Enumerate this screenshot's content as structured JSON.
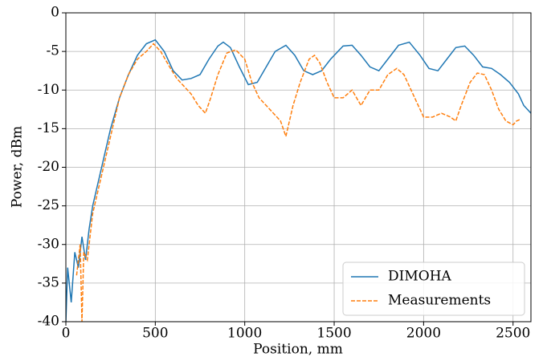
{
  "chart_data": {
    "type": "line",
    "xlabel": "Position, mm",
    "ylabel": "Power, dBm",
    "xlim": [
      0,
      2600
    ],
    "xticks": [
      0,
      500,
      1000,
      1500,
      2000,
      2500
    ],
    "ylim": [
      -40,
      0
    ],
    "yticks": [
      -40,
      -35,
      -30,
      -25,
      -20,
      -15,
      -10,
      -5,
      0
    ],
    "grid": true,
    "legend": "lower right",
    "series": [
      {
        "name": "DIMOHA",
        "color": "#1f77b4",
        "dash": "solid",
        "x": [
          0,
          10,
          30,
          50,
          70,
          90,
          110,
          130,
          150,
          200,
          250,
          300,
          350,
          400,
          450,
          500,
          550,
          600,
          650,
          700,
          750,
          800,
          850,
          880,
          920,
          970,
          1020,
          1070,
          1120,
          1170,
          1230,
          1280,
          1330,
          1380,
          1430,
          1480,
          1550,
          1600,
          1650,
          1700,
          1750,
          1800,
          1860,
          1920,
          1980,
          2030,
          2080,
          2130,
          2180,
          2230,
          2280,
          2330,
          2380,
          2430,
          2480,
          2530,
          2560,
          2600
        ],
        "values": [
          -40,
          -33,
          -37.5,
          -31,
          -33,
          -29,
          -32,
          -28,
          -25,
          -20,
          -15,
          -11,
          -8,
          -5.5,
          -4,
          -3.5,
          -5,
          -7.5,
          -8.7,
          -8.5,
          -8,
          -6,
          -4.3,
          -3.8,
          -4.5,
          -7,
          -9.3,
          -9,
          -7,
          -5,
          -4.2,
          -5.5,
          -7.5,
          -8,
          -7.5,
          -6,
          -4.3,
          -4.2,
          -5.5,
          -7,
          -7.5,
          -6,
          -4.2,
          -3.8,
          -5.5,
          -7.2,
          -7.5,
          -6,
          -4.5,
          -4.3,
          -5.5,
          -7,
          -7.2,
          -8,
          -9,
          -10.5,
          -12,
          -13
        ]
      },
      {
        "name": "Measurements",
        "color": "#ff7f0e",
        "dash": "dashed",
        "x": [
          60,
          80,
          90,
          100,
          120,
          150,
          200,
          250,
          300,
          350,
          400,
          450,
          490,
          530,
          580,
          620,
          660,
          700,
          740,
          780,
          810,
          850,
          900,
          950,
          1000,
          1040,
          1080,
          1120,
          1160,
          1200,
          1230,
          1270,
          1310,
          1360,
          1390,
          1420,
          1460,
          1500,
          1550,
          1600,
          1650,
          1700,
          1750,
          1800,
          1850,
          1890,
          1930,
          1970,
          2000,
          2050,
          2100,
          2150,
          2180,
          2210,
          2260,
          2300,
          2340,
          2380,
          2420,
          2460,
          2500,
          2520,
          2540
        ],
        "values": [
          -34,
          -30,
          -40,
          -31,
          -32,
          -26,
          -21,
          -16,
          -11,
          -8,
          -6,
          -5,
          -4,
          -5,
          -7,
          -8.5,
          -9.5,
          -10.5,
          -12,
          -13,
          -11,
          -8,
          -5.2,
          -4.8,
          -6,
          -9,
          -11,
          -12,
          -13,
          -14,
          -16,
          -12,
          -9,
          -6,
          -5.5,
          -6.5,
          -9,
          -11,
          -11,
          -10,
          -12,
          -10,
          -10,
          -8,
          -7.2,
          -8,
          -10,
          -12,
          -13.5,
          -13.5,
          -13,
          -13.5,
          -14,
          -12,
          -9,
          -7.8,
          -8,
          -10,
          -12.5,
          -14,
          -14.5,
          -14,
          -13.8
        ]
      }
    ]
  }
}
